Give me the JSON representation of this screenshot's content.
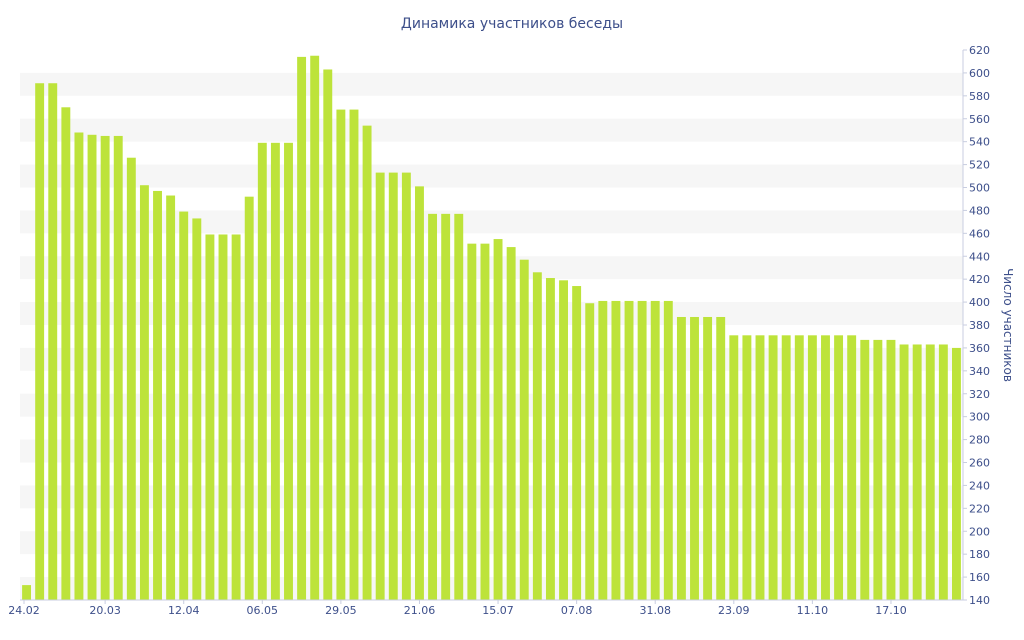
{
  "chart_data": {
    "type": "bar",
    "title": "Динамика участников беседы",
    "ylabel": "Число участников",
    "ylim": [
      140,
      620
    ],
    "y_ticks": [
      140,
      160,
      180,
      200,
      220,
      240,
      260,
      280,
      300,
      320,
      340,
      360,
      380,
      400,
      420,
      440,
      460,
      480,
      500,
      520,
      540,
      560,
      580,
      600,
      620
    ],
    "y_axis_side": "right",
    "x_tick_labels": [
      "24.02",
      "20.03",
      "12.04",
      "06.05",
      "29.05",
      "21.06",
      "15.07",
      "07.08",
      "31.08",
      "23.09",
      "11.10",
      "17.10"
    ],
    "bar_color": "#bde33a",
    "band_color": "#f6f6f6",
    "grid": "alternating horizontal bands",
    "values": [
      153,
      591,
      591,
      570,
      548,
      546,
      545,
      545,
      526,
      502,
      497,
      493,
      479,
      473,
      459,
      459,
      459,
      492,
      539,
      539,
      539,
      614,
      615,
      603,
      568,
      568,
      554,
      513,
      513,
      513,
      501,
      477,
      477,
      477,
      451,
      451,
      455,
      448,
      437,
      426,
      421,
      419,
      414,
      399,
      401,
      401,
      401,
      401,
      401,
      401,
      387,
      387,
      387,
      387,
      371,
      371,
      371,
      371,
      371,
      371,
      371,
      371,
      371,
      371,
      367,
      367,
      367,
      363,
      363,
      363,
      363,
      360
    ]
  }
}
